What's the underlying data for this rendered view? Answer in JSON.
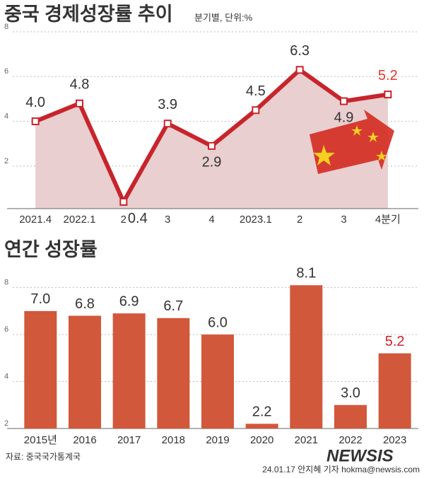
{
  "chart_data": [
    {
      "type": "line",
      "title": "중국 경제성장률 추이",
      "subtitle": "분기별, 단위:%",
      "categories": [
        "2021.4",
        "2022.1",
        "2",
        "3",
        "4",
        "2023.1",
        "2",
        "3",
        "4분기"
      ],
      "values": [
        4.0,
        4.8,
        0.4,
        3.9,
        2.9,
        4.5,
        6.3,
        4.9,
        5.2
      ],
      "value_labels": [
        "4.0",
        "4.8",
        "0.4",
        "3.9",
        "2.9",
        "4.5",
        "6.3",
        "4.9",
        "5.2"
      ],
      "color": "#c8242c",
      "area_color": "#e9cfcf",
      "highlight_color": "#e03a2e",
      "ylim": [
        0.1,
        8
      ],
      "yticks": [
        2,
        4,
        6,
        8
      ],
      "grid": true
    },
    {
      "type": "bar",
      "title": "연간 성장률",
      "categories": [
        "2015년",
        "2016",
        "2017",
        "2018",
        "2019",
        "2020",
        "2021",
        "2022",
        "2023"
      ],
      "values": [
        7.0,
        6.8,
        6.9,
        6.7,
        6.0,
        2.2,
        8.1,
        3.0,
        5.2
      ],
      "value_labels": [
        "7.0",
        "6.8",
        "6.9",
        "6.7",
        "6.0",
        "2.2",
        "8.1",
        "3.0",
        "5.2"
      ],
      "color": "#d2583b",
      "highlight_color": "#d4202a",
      "ylim": [
        2,
        8.2
      ],
      "yticks": [
        2,
        4,
        6,
        8
      ],
      "grid": true
    }
  ],
  "source": "자료: 중국국가통계국",
  "watermark": "NEWSIS",
  "credit": "24.01.17 안지혜 기자 hokma@newsis.com"
}
